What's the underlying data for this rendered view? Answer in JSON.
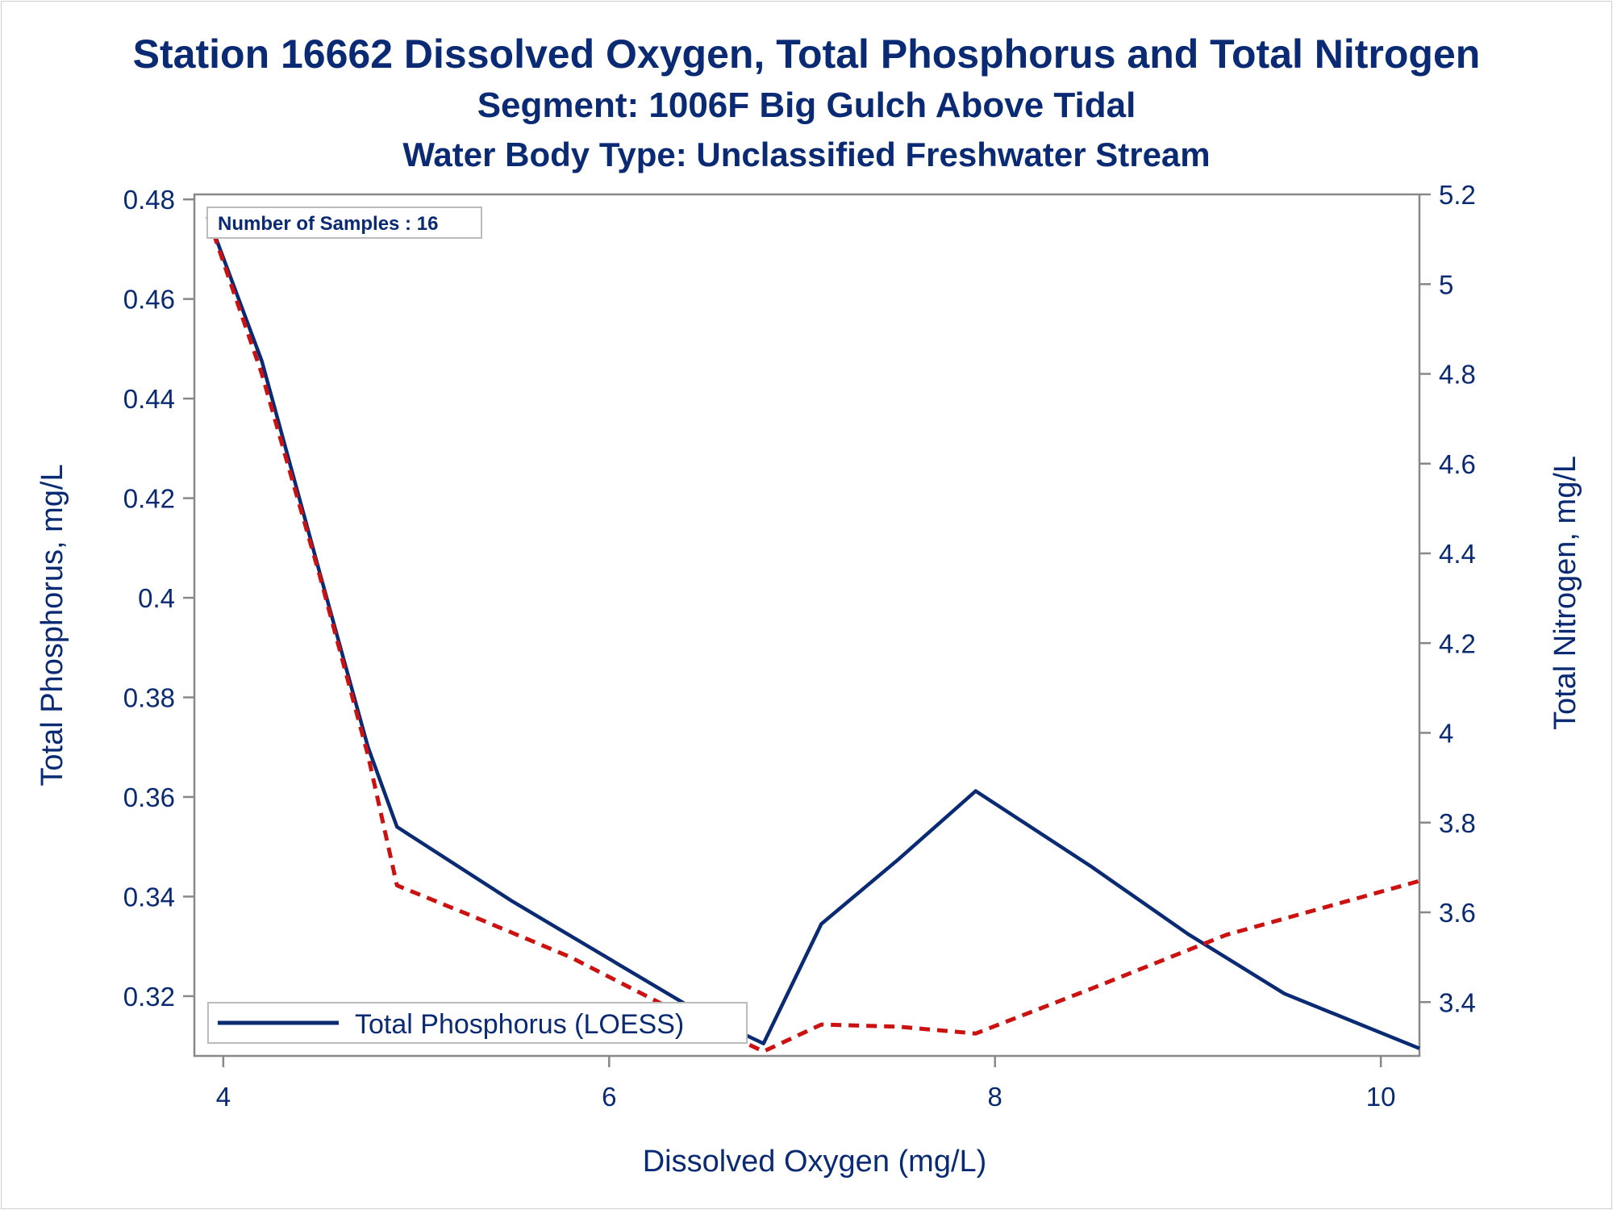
{
  "titles": {
    "line1": "Station 16662  Dissolved Oxygen, Total Phosphorus and Total Nitrogen",
    "line2": "Segment: 1006F  Big Gulch Above Tidal",
    "line3": "Water Body Type: Unclassified Freshwater Stream"
  },
  "inset_text": "Number of Samples : 16",
  "legend": {
    "label": "Total Phosphorus (LOESS)"
  },
  "colors": {
    "text": "#0b2a74",
    "phosphorus": "#0b2a74",
    "nitrogen": "#cc1111",
    "axis": "#888888"
  },
  "chart_data": {
    "type": "line",
    "xlabel": "Dissolved Oxygen (mg/L)",
    "ylabel": "Total Phosphorus, mg/L",
    "y2label": "Total Nitrogen, mg/L",
    "xlim": [
      3.85,
      10.2
    ],
    "ylim": [
      0.308,
      0.481
    ],
    "y2lim": [
      3.28,
      5.2
    ],
    "xticks": [
      "4",
      "6",
      "8",
      "10"
    ],
    "yticks": [
      "0.32",
      "0.34",
      "0.36",
      "0.38",
      "0.4",
      "0.42",
      "0.44",
      "0.46",
      "0.48"
    ],
    "y2ticks": [
      "3.4",
      "3.6",
      "3.8",
      "4",
      "4.2",
      "4.4",
      "4.6",
      "4.8",
      "5",
      "5.2"
    ],
    "series": [
      {
        "name": "Total Phosphorus (LOESS)",
        "axis": "y",
        "style": "solid",
        "x": [
          3.92,
          4.2,
          4.5,
          4.75,
          4.9,
          5.0,
          5.5,
          6.0,
          6.5,
          6.8,
          7.1,
          7.5,
          7.9,
          8.5,
          9.0,
          9.5,
          10.2
        ],
        "y": [
          0.4766,
          0.4475,
          0.405,
          0.37,
          0.354,
          0.3515,
          0.339,
          0.3275,
          0.316,
          0.3105,
          0.3345,
          0.3475,
          0.3612,
          0.346,
          0.3325,
          0.3205,
          0.3095
        ]
      },
      {
        "name": "Total Nitrogen",
        "axis": "y2",
        "style": "dashed",
        "x": [
          3.92,
          4.2,
          4.5,
          4.75,
          4.9,
          5.3,
          5.8,
          6.3,
          6.8,
          7.1,
          7.5,
          7.9,
          8.5,
          9.2,
          10.2
        ],
        "y2": [
          5.15,
          4.8,
          4.35,
          3.95,
          3.66,
          3.59,
          3.5,
          3.39,
          3.29,
          3.35,
          3.345,
          3.33,
          3.43,
          3.55,
          3.67
        ]
      }
    ]
  }
}
